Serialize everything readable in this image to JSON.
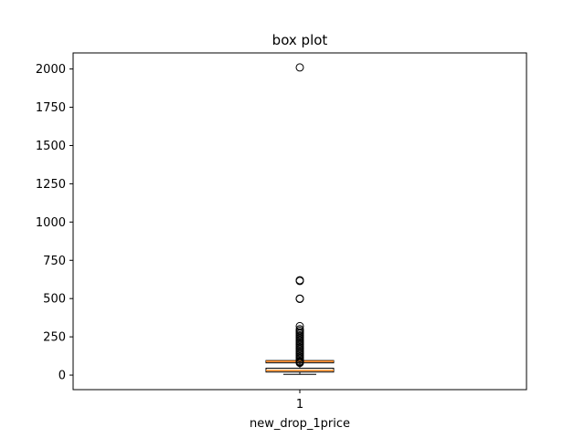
{
  "chart_data": {
    "type": "box",
    "title": "box plot",
    "xlabel": "new_drop_1price",
    "ylabel": "",
    "categories": [
      "1"
    ],
    "ylim": [
      -95,
      2105
    ],
    "yticks": [
      0,
      250,
      500,
      750,
      1000,
      1250,
      1500,
      1750,
      2000
    ],
    "grid": false,
    "box": {
      "whisker_low": 5,
      "q1": 20,
      "median": 30,
      "q3": 45,
      "whisker_high": 80
    },
    "box2": {
      "q1": 80,
      "median": 90,
      "q3": 95
    },
    "outliers": [
      2010,
      620,
      615,
      500,
      498,
      320,
      300,
      290,
      280,
      270,
      260,
      250,
      240,
      230,
      220,
      210,
      200,
      190,
      180,
      170,
      160,
      150,
      140,
      130,
      120,
      110,
      100,
      90,
      85,
      80
    ],
    "colors": {
      "median": "#ff7f0e",
      "box": "#000000",
      "outlier": "#000000"
    }
  }
}
